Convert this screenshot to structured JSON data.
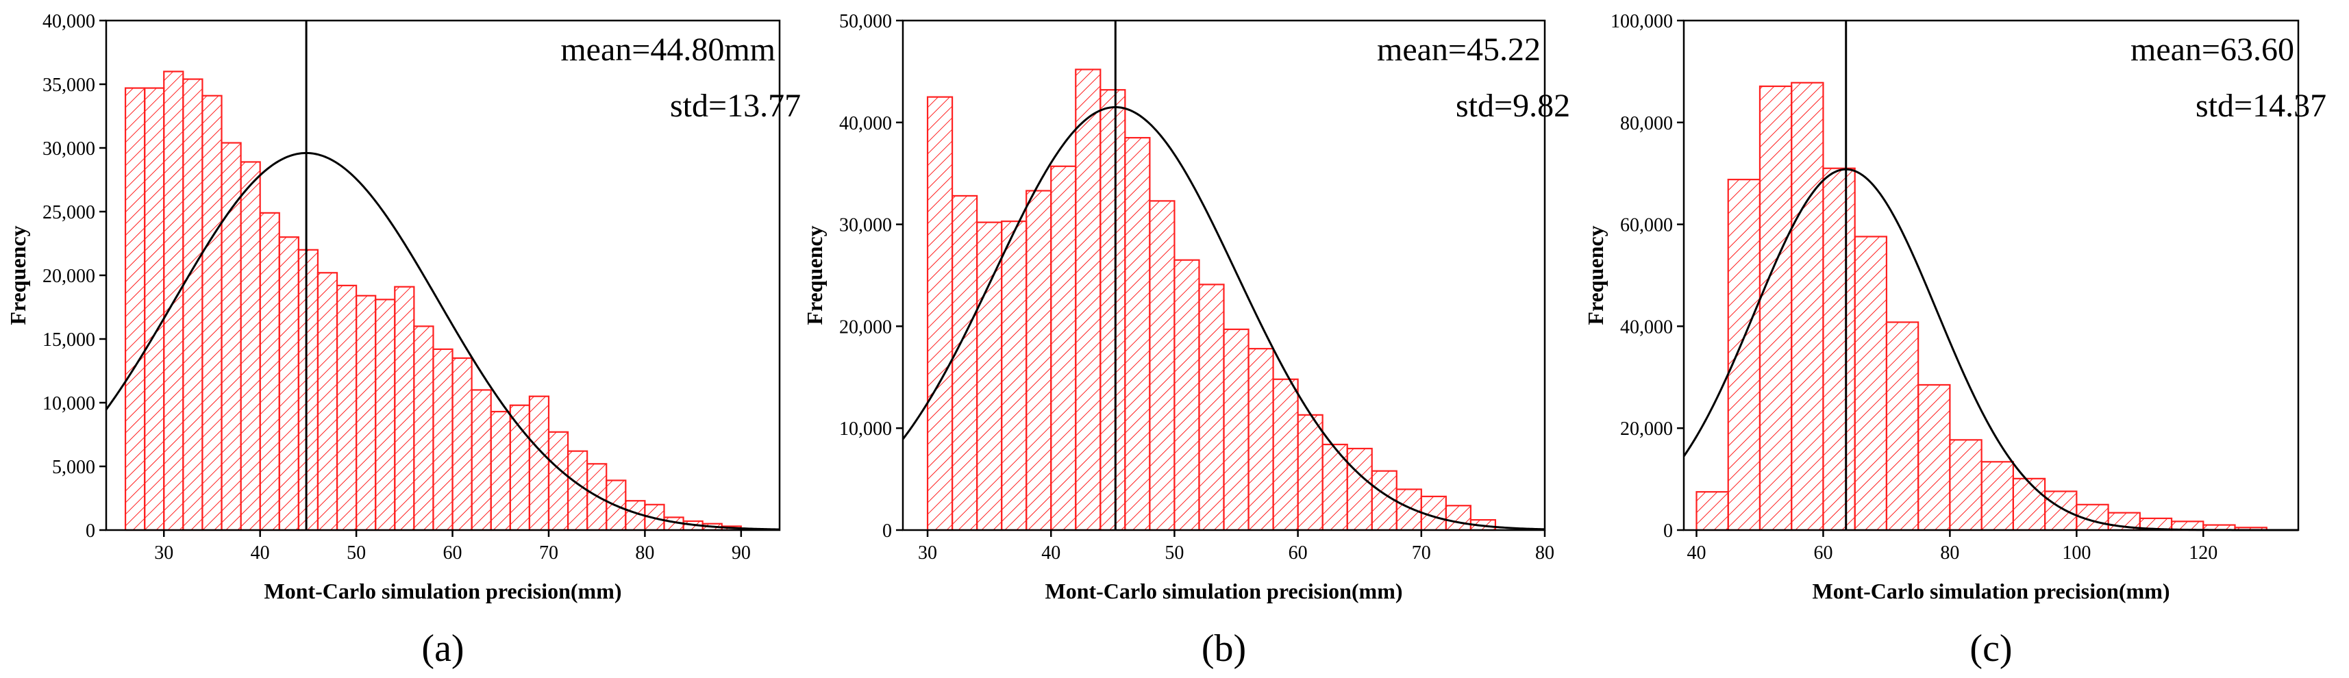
{
  "colors": {
    "bar": "#ff2020",
    "curve": "#000000",
    "axis": "#000000"
  },
  "chart_data": [
    {
      "type": "bar",
      "panel_label": "(a)",
      "xlabel": "Mont-Carlo simulation precision(mm)",
      "ylabel": "Frequency",
      "xlim": [
        24,
        94
      ],
      "ylim": [
        0,
        40000
      ],
      "xticks": [
        30,
        40,
        50,
        60,
        70,
        80,
        90
      ],
      "yticks": [
        0,
        5000,
        10000,
        15000,
        20000,
        25000,
        30000,
        35000,
        40000
      ],
      "ytick_labels": [
        "0",
        "5,000",
        "10,000",
        "15,000",
        "20,000",
        "25,000",
        "30,000",
        "35,000",
        "40,000"
      ],
      "bin_width": 2,
      "bin_start": 26,
      "values": [
        34700,
        34700,
        36000,
        35400,
        34100,
        30400,
        28900,
        24900,
        23000,
        22000,
        20200,
        19200,
        18400,
        18100,
        19100,
        16000,
        14200,
        13500,
        11000,
        9300,
        9800,
        10500,
        7700,
        6200,
        5200,
        3900,
        2300,
        2000,
        1000,
        700,
        500,
        300
      ],
      "mean": 44.8,
      "std": 13.77,
      "curve_peak": 29600,
      "mean_label": "mean=44.80mm",
      "std_label": "std=13.77"
    },
    {
      "type": "bar",
      "panel_label": "(b)",
      "xlabel": "Mont-Carlo simulation precision(mm)",
      "ylabel": "Frequency",
      "xlim": [
        28,
        80
      ],
      "ylim": [
        0,
        50000
      ],
      "xticks": [
        30,
        40,
        50,
        60,
        70,
        80
      ],
      "yticks": [
        0,
        10000,
        20000,
        30000,
        40000,
        50000
      ],
      "ytick_labels": [
        "0",
        "10,000",
        "20,000",
        "30,000",
        "40,000",
        "50,000"
      ],
      "bin_width": 2,
      "bin_start": 30,
      "values": [
        42500,
        32800,
        30200,
        30300,
        33300,
        35700,
        45200,
        43200,
        38500,
        32300,
        26500,
        24100,
        19700,
        17800,
        14800,
        11300,
        8400,
        8000,
        5800,
        4000,
        3300,
        2400,
        1000
      ],
      "mean": 45.22,
      "std": 9.82,
      "curve_peak": 41500,
      "mean_label": "mean=45.22",
      "std_label": "std=9.82"
    },
    {
      "type": "bar",
      "panel_label": "(c)",
      "xlabel": "Mont-Carlo simulation precision(mm)",
      "ylabel": "Frequency",
      "xlim": [
        38,
        135
      ],
      "ylim": [
        0,
        100000
      ],
      "xticks": [
        40,
        60,
        80,
        100,
        120
      ],
      "yticks": [
        0,
        20000,
        40000,
        60000,
        80000,
        100000
      ],
      "ytick_labels": [
        "0",
        "20,000",
        "40,000",
        "60,000",
        "80,000",
        "100,000"
      ],
      "bin_width": 5,
      "bin_start": 40,
      "values": [
        7500,
        68800,
        87100,
        87800,
        71000,
        57600,
        40800,
        28500,
        17700,
        13400,
        10100,
        7600,
        5000,
        3400,
        2300,
        1700,
        1000,
        500
      ],
      "mean": 63.6,
      "std": 14.37,
      "curve_peak": 70800,
      "mean_label": "mean=63.60",
      "std_label": "std=14.37"
    }
  ]
}
